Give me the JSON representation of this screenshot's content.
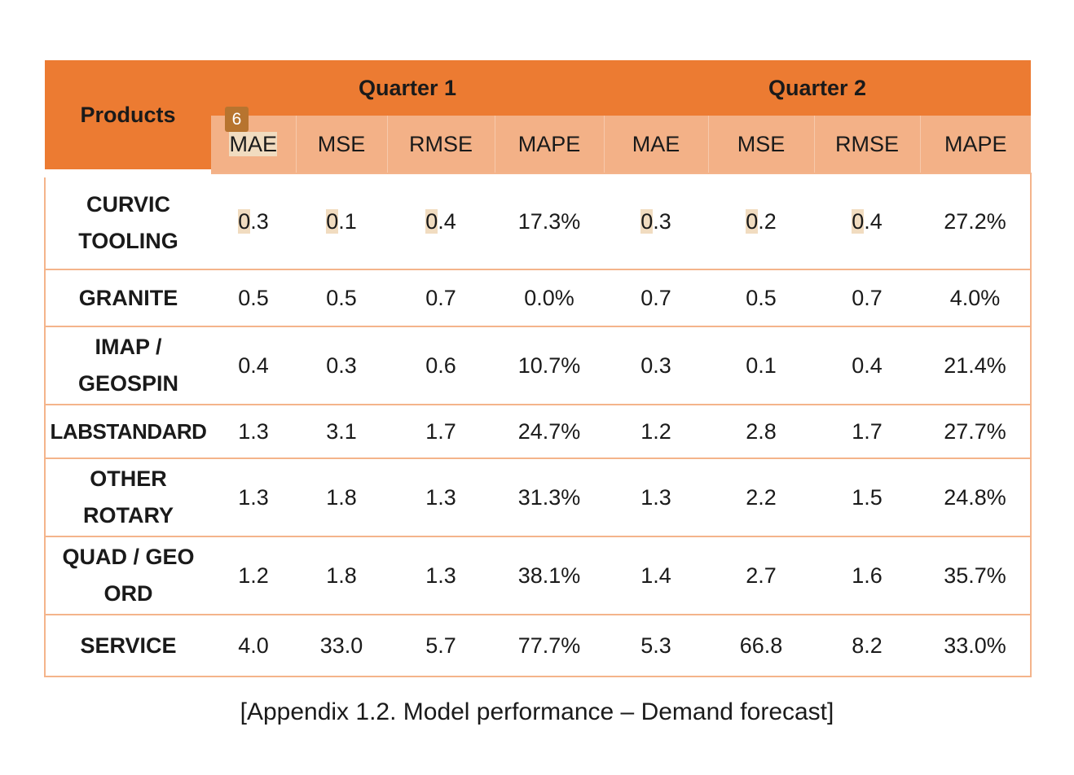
{
  "table": {
    "products_header": "Products",
    "quarter1": "Quarter 1",
    "quarter2": "Quarter 2",
    "metrics": [
      "MAE",
      "MSE",
      "RMSE",
      "MAPE"
    ],
    "rows": [
      {
        "product_line1": "CURVIC",
        "product_line2": "TOOLING",
        "q1": [
          "0.3",
          "0.1",
          "0.4",
          "17.3%"
        ],
        "q2": [
          "0.3",
          "0.2",
          "0.4",
          "27.2%"
        ]
      },
      {
        "product_line1": "GRANITE",
        "product_line2": "",
        "q1": [
          "0.5",
          "0.5",
          "0.7",
          "0.0%"
        ],
        "q2": [
          "0.7",
          "0.5",
          "0.7",
          "4.0%"
        ]
      },
      {
        "product_line1": "IMAP /",
        "product_line2": "GEOSPIN",
        "q1": [
          "0.4",
          "0.3",
          "0.6",
          "10.7%"
        ],
        "q2": [
          "0.3",
          "0.1",
          "0.4",
          "21.4%"
        ]
      },
      {
        "product_line1": "LABSTANDARD",
        "product_line2": "",
        "q1": [
          "1.3",
          "3.1",
          "1.7",
          "24.7%"
        ],
        "q2": [
          "1.2",
          "2.8",
          "1.7",
          "27.7%"
        ]
      },
      {
        "product_line1": "OTHER",
        "product_line2": "ROTARY",
        "q1": [
          "1.3",
          "1.8",
          "1.3",
          "31.3%"
        ],
        "q2": [
          "1.3",
          "2.2",
          "1.5",
          "24.8%"
        ]
      },
      {
        "product_line1": "QUAD / GEO",
        "product_line2": "ORD",
        "q1": [
          "1.2",
          "1.8",
          "1.3",
          "38.1%"
        ],
        "q2": [
          "1.4",
          "2.7",
          "1.6",
          "35.7%"
        ]
      },
      {
        "product_line1": "SERVICE",
        "product_line2": "",
        "q1": [
          "4.0",
          "33.0",
          "5.7",
          "77.7%"
        ],
        "q2": [
          "5.3",
          "66.8",
          "8.2",
          "33.0%"
        ]
      }
    ]
  },
  "badge": "6",
  "caption": "[Appendix 1.2. Model performance – Demand forecast]",
  "colors": {
    "header": "#ec7b32",
    "subheader": "#f3b187",
    "border": "#f4b48b",
    "highlight": "#f1dcc0"
  }
}
